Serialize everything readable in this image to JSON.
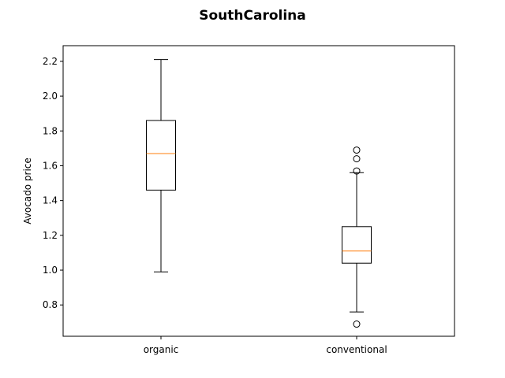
{
  "chart_data": {
    "type": "box",
    "title": "SouthCarolina",
    "xlabel": "",
    "ylabel": "Avocado price",
    "ylim": [
      0.62,
      2.29
    ],
    "yticks": [
      "0.8",
      "1.0",
      "1.2",
      "1.4",
      "1.6",
      "1.8",
      "2.0",
      "2.2"
    ],
    "grid": false,
    "colors": {
      "box": "#000000",
      "median": "#ff7f0e",
      "flier": "#000000"
    },
    "categories": [
      "organic",
      "conventional"
    ],
    "boxes": [
      {
        "category": "organic",
        "whisker_low": 0.99,
        "q1": 1.46,
        "median": 1.67,
        "q3": 1.86,
        "whisker_high": 2.21,
        "outliers": []
      },
      {
        "category": "conventional",
        "whisker_low": 0.76,
        "q1": 1.04,
        "median": 1.11,
        "q3": 1.25,
        "whisker_high": 1.56,
        "outliers": [
          0.69,
          1.57,
          1.64,
          1.69
        ]
      }
    ]
  }
}
